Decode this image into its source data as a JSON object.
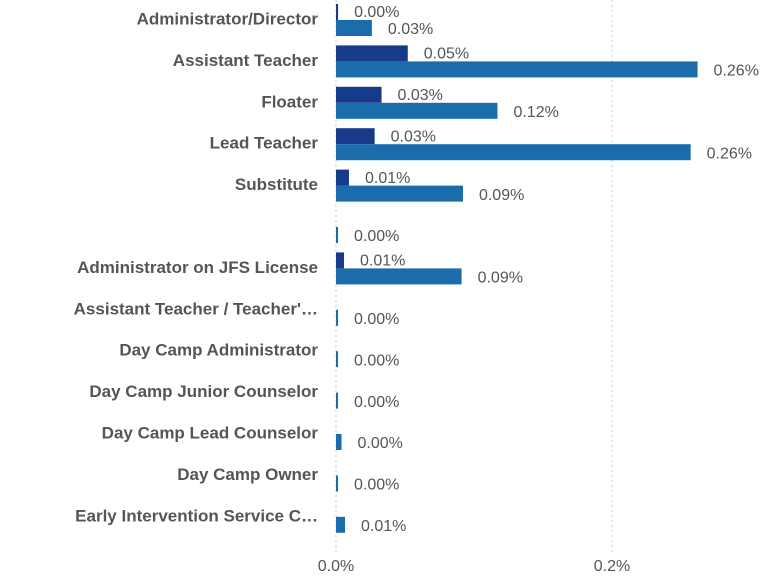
{
  "chart_data": {
    "type": "hbar",
    "categories": [
      "Administrator/Director",
      "Assistant Teacher",
      "Floater",
      "Lead Teacher",
      "Substitute",
      null,
      "Administrator on JFS License",
      "Assistant Teacher / Teacher'…",
      "Day Camp Administrator",
      "Day Camp Junior Counselor",
      "Day Camp Lead Counselor",
      "Day Camp Owner",
      "Early Intervention Service C…"
    ],
    "series": [
      {
        "color": "#173a8a",
        "values": [
          0.0015,
          0.052,
          0.033,
          0.028,
          0.0094,
          null,
          0.0058,
          null,
          null,
          null,
          null,
          null,
          null
        ],
        "value_labels": [
          "0.00%",
          "0.05%",
          "0.03%",
          "0.03%",
          "0.01%",
          null,
          "0.01%",
          null,
          null,
          null,
          null,
          null,
          null
        ]
      },
      {
        "color": "#1a6cab",
        "values": [
          0.026,
          0.262,
          0.117,
          0.257,
          0.092,
          0.001,
          0.091,
          0.001,
          0.001,
          0.001,
          0.004,
          0.001,
          0.0065
        ],
        "value_labels": [
          "0.03%",
          "0.26%",
          "0.12%",
          "0.26%",
          "0.09%",
          "0.00%",
          "0.09%",
          "0.00%",
          "0.00%",
          "0.00%",
          "0.00%",
          "0.00%",
          "0.01%"
        ]
      }
    ],
    "xlim": [
      0,
      0.31
    ],
    "xticks": [
      {
        "value": 0,
        "label": "0.0%"
      },
      {
        "value": 0.2,
        "label": "0.2%"
      }
    ],
    "grid": true
  }
}
